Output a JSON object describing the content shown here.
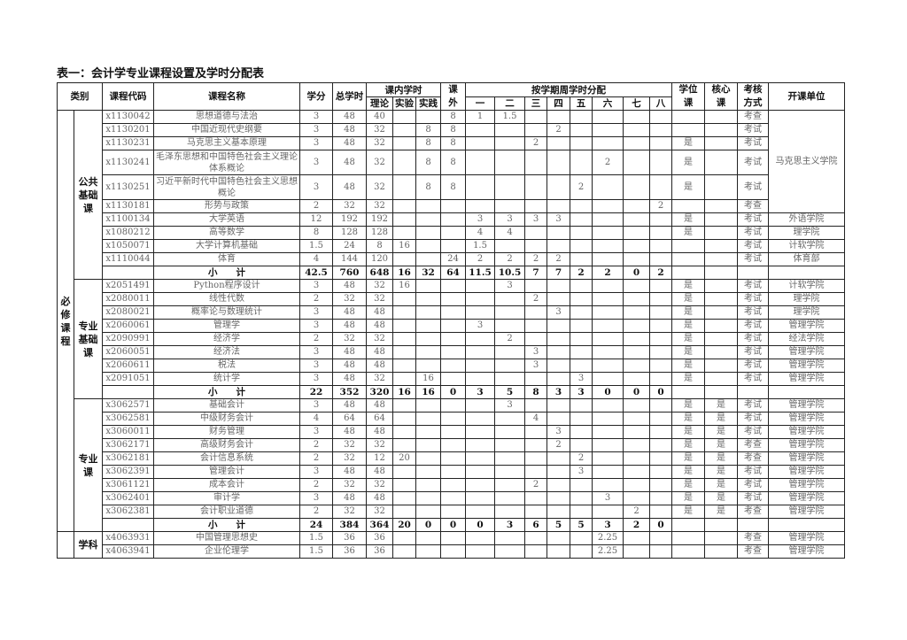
{
  "title": "表一：会计学专业课程设置及学时分配表",
  "header": {
    "category": "类别",
    "code": "课程代码",
    "name": "课程名称",
    "credit": "学分",
    "total_hours": "总学时",
    "in_class": "课内学时",
    "theory": "理论",
    "lab": "实验",
    "practice": "实践",
    "extra": "课外",
    "semester_dist": "按学期周学时分配",
    "semesters": [
      "一",
      "二",
      "三",
      "四",
      "五",
      "六",
      "七",
      "八"
    ],
    "degree": "学位课",
    "core": "核心课",
    "exam": "考核方式",
    "unit": "开课单位"
  },
  "outer_groups": [
    {
      "label": "必修课程",
      "groups": [
        0,
        1,
        2
      ]
    },
    {
      "label": "",
      "groups": [
        3
      ]
    }
  ],
  "groups": [
    {
      "label": "公共基础课",
      "merged_unit": {
        "rows": 6,
        "text": "马克思主义学院"
      },
      "rows": [
        {
          "code": "x1130042",
          "name": "思想道德与法治",
          "credit": "3",
          "total": "48",
          "theory": "40",
          "lab": "",
          "practice": "",
          "extra": "8",
          "sem": [
            "1",
            "1.5",
            "",
            "",
            "",
            "",
            "",
            ""
          ],
          "degree": "",
          "core": "",
          "exam": "考查",
          "unit": ""
        },
        {
          "code": "x1130201",
          "name": "中国近现代史纲要",
          "credit": "3",
          "total": "48",
          "theory": "32",
          "lab": "",
          "practice": "8",
          "extra": "8",
          "sem": [
            "",
            "",
            "",
            "2",
            "",
            "",
            "",
            ""
          ],
          "degree": "",
          "core": "",
          "exam": "考试",
          "unit": ""
        },
        {
          "code": "x1130231",
          "name": "马克思主义基本原理",
          "credit": "3",
          "total": "48",
          "theory": "32",
          "lab": "",
          "practice": "8",
          "extra": "8",
          "sem": [
            "",
            "",
            "2",
            "",
            "",
            "",
            "",
            ""
          ],
          "degree": "是",
          "core": "",
          "exam": "考试",
          "unit": ""
        },
        {
          "code": "x1130241",
          "name": "毛泽东思想和中国特色社会主义理论体系概论",
          "tall": true,
          "credit": "3",
          "total": "48",
          "theory": "32",
          "lab": "",
          "practice": "8",
          "extra": "8",
          "sem": [
            "",
            "",
            "",
            "",
            "",
            "2",
            "",
            ""
          ],
          "degree": "是",
          "core": "",
          "exam": "考试",
          "unit": ""
        },
        {
          "code": "x1130251",
          "name": "习近平新时代中国特色社会主义思想概论",
          "tall": true,
          "credit": "3",
          "total": "48",
          "theory": "32",
          "lab": "",
          "practice": "8",
          "extra": "8",
          "sem": [
            "",
            "",
            "",
            "",
            "2",
            "",
            "",
            ""
          ],
          "degree": "是",
          "core": "",
          "exam": "考试",
          "unit": ""
        },
        {
          "code": "x1130181",
          "name": "形势与政策",
          "credit": "2",
          "total": "32",
          "theory": "32",
          "lab": "",
          "practice": "",
          "extra": "",
          "sem": [
            "",
            "",
            "",
            "",
            "",
            "",
            "",
            "2"
          ],
          "degree": "",
          "core": "",
          "exam": "考查",
          "unit": ""
        },
        {
          "code": "x1100134",
          "name": "大学英语",
          "credit": "12",
          "total": "192",
          "theory": "192",
          "lab": "",
          "practice": "",
          "extra": "",
          "sem": [
            "3",
            "3",
            "3",
            "3",
            "",
            "",
            "",
            ""
          ],
          "degree": "是",
          "core": "",
          "exam": "考试",
          "unit": "外语学院"
        },
        {
          "code": "x1080212",
          "name": "高等数学",
          "credit": "8",
          "total": "128",
          "theory": "128",
          "lab": "",
          "practice": "",
          "extra": "",
          "sem": [
            "4",
            "4",
            "",
            "",
            "",
            "",
            "",
            ""
          ],
          "degree": "是",
          "core": "",
          "exam": "考试",
          "unit": "理学院"
        },
        {
          "code": "x1050071",
          "name": "大学计算机基础",
          "credit": "1.5",
          "total": "24",
          "theory": "8",
          "lab": "16",
          "practice": "",
          "extra": "",
          "sem": [
            "1.5",
            "",
            "",
            "",
            "",
            "",
            "",
            ""
          ],
          "degree": "",
          "core": "",
          "exam": "考试",
          "unit": "计软学院"
        },
        {
          "code": "x1110044",
          "name": "体育",
          "credit": "4",
          "total": "144",
          "theory": "120",
          "lab": "",
          "practice": "",
          "extra": "24",
          "sem": [
            "2",
            "2",
            "2",
            "2",
            "",
            "",
            "",
            ""
          ],
          "degree": "",
          "core": "",
          "exam": "考试",
          "unit": "体育部"
        }
      ],
      "subtotal": {
        "label": "小　　计",
        "credit": "42.5",
        "total": "760",
        "theory": "648",
        "lab": "16",
        "practice": "32",
        "extra": "64",
        "sem": [
          "11.5",
          "10.5",
          "7",
          "7",
          "2",
          "2",
          "0",
          "2"
        ]
      }
    },
    {
      "label": "专业基础课",
      "rows": [
        {
          "code": "x2051491",
          "name": "Python程序设计",
          "credit": "3",
          "total": "48",
          "theory": "32",
          "lab": "16",
          "practice": "",
          "extra": "",
          "sem": [
            "",
            "3",
            "",
            "",
            "",
            "",
            "",
            ""
          ],
          "degree": "是",
          "core": "",
          "exam": "考试",
          "unit": "计软学院"
        },
        {
          "code": "x2080011",
          "name": "线性代数",
          "credit": "2",
          "total": "32",
          "theory": "32",
          "lab": "",
          "practice": "",
          "extra": "",
          "sem": [
            "",
            "",
            "2",
            "",
            "",
            "",
            "",
            ""
          ],
          "degree": "是",
          "core": "",
          "exam": "考试",
          "unit": "理学院"
        },
        {
          "code": "x2080021",
          "name": "概率论与数理统计",
          "credit": "3",
          "total": "48",
          "theory": "48",
          "lab": "",
          "practice": "",
          "extra": "",
          "sem": [
            "",
            "",
            "",
            "3",
            "",
            "",
            "",
            ""
          ],
          "degree": "是",
          "core": "",
          "exam": "考试",
          "unit": "理学院"
        },
        {
          "code": "x2060061",
          "name": "管理学",
          "credit": "3",
          "total": "48",
          "theory": "48",
          "lab": "",
          "practice": "",
          "extra": "",
          "sem": [
            "3",
            "",
            "",
            "",
            "",
            "",
            "",
            ""
          ],
          "degree": "是",
          "core": "",
          "exam": "考试",
          "unit": "管理学院"
        },
        {
          "code": "x2090991",
          "name": "经济学",
          "credit": "2",
          "total": "32",
          "theory": "32",
          "lab": "",
          "practice": "",
          "extra": "",
          "sem": [
            "",
            "2",
            "",
            "",
            "",
            "",
            "",
            ""
          ],
          "degree": "是",
          "core": "",
          "exam": "考试",
          "unit": "经法学院"
        },
        {
          "code": "x2060051",
          "name": "经济法",
          "credit": "3",
          "total": "48",
          "theory": "48",
          "lab": "",
          "practice": "",
          "extra": "",
          "sem": [
            "",
            "",
            "3",
            "",
            "",
            "",
            "",
            ""
          ],
          "degree": "是",
          "core": "",
          "exam": "考试",
          "unit": "管理学院"
        },
        {
          "code": "x2060611",
          "name": "税法",
          "credit": "3",
          "total": "48",
          "theory": "48",
          "lab": "",
          "practice": "",
          "extra": "",
          "sem": [
            "",
            "",
            "3",
            "",
            "",
            "",
            "",
            ""
          ],
          "degree": "是",
          "core": "",
          "exam": "考试",
          "unit": "管理学院"
        },
        {
          "code": "x2091051",
          "name": "统计学",
          "credit": "3",
          "total": "48",
          "theory": "32",
          "lab": "",
          "practice": "16",
          "extra": "",
          "sem": [
            "",
            "",
            "",
            "",
            "3",
            "",
            "",
            ""
          ],
          "degree": "是",
          "core": "",
          "exam": "考试",
          "unit": "管理学院"
        }
      ],
      "subtotal": {
        "label": "小　　计",
        "credit": "22",
        "total": "352",
        "theory": "320",
        "lab": "16",
        "practice": "16",
        "extra": "0",
        "sem": [
          "3",
          "5",
          "8",
          "3",
          "3",
          "0",
          "0",
          "0"
        ]
      }
    },
    {
      "label": "专业课",
      "rows": [
        {
          "code": "x3062571",
          "name": "基础会计",
          "credit": "3",
          "total": "48",
          "theory": "48",
          "lab": "",
          "practice": "",
          "extra": "",
          "sem": [
            "",
            "3",
            "",
            "",
            "",
            "",
            "",
            ""
          ],
          "degree": "是",
          "core": "是",
          "exam": "考试",
          "unit": "管理学院"
        },
        {
          "code": "x3062581",
          "name": "中级财务会计",
          "credit": "4",
          "total": "64",
          "theory": "64",
          "lab": "",
          "practice": "",
          "extra": "",
          "sem": [
            "",
            "",
            "4",
            "",
            "",
            "",
            "",
            ""
          ],
          "degree": "是",
          "core": "是",
          "exam": "考试",
          "unit": "管理学院"
        },
        {
          "code": "x3060011",
          "name": "财务管理",
          "credit": "3",
          "total": "48",
          "theory": "48",
          "lab": "",
          "practice": "",
          "extra": "",
          "sem": [
            "",
            "",
            "",
            "3",
            "",
            "",
            "",
            ""
          ],
          "degree": "是",
          "core": "是",
          "exam": "考试",
          "unit": "管理学院"
        },
        {
          "code": "x3062171",
          "name": "高级财务会计",
          "credit": "2",
          "total": "32",
          "theory": "32",
          "lab": "",
          "practice": "",
          "extra": "",
          "sem": [
            "",
            "",
            "",
            "2",
            "",
            "",
            "",
            ""
          ],
          "degree": "是",
          "core": "是",
          "exam": "考查",
          "unit": "管理学院"
        },
        {
          "code": "x3062181",
          "name": "会计信息系统",
          "credit": "2",
          "total": "32",
          "theory": "12",
          "lab": "20",
          "practice": "",
          "extra": "",
          "sem": [
            "",
            "",
            "",
            "",
            "2",
            "",
            "",
            ""
          ],
          "degree": "是",
          "core": "是",
          "exam": "考查",
          "unit": "管理学院"
        },
        {
          "code": "x3062391",
          "name": "管理会计",
          "credit": "3",
          "total": "48",
          "theory": "48",
          "lab": "",
          "practice": "",
          "extra": "",
          "sem": [
            "",
            "",
            "",
            "",
            "3",
            "",
            "",
            ""
          ],
          "degree": "是",
          "core": "是",
          "exam": "考试",
          "unit": "管理学院"
        },
        {
          "code": "x3061121",
          "name": "成本会计",
          "credit": "2",
          "total": "32",
          "theory": "32",
          "lab": "",
          "practice": "",
          "extra": "",
          "sem": [
            "",
            "",
            "2",
            "",
            "",
            "",
            "",
            ""
          ],
          "degree": "是",
          "core": "是",
          "exam": "考试",
          "unit": "管理学院"
        },
        {
          "code": "x3062401",
          "name": "审计学",
          "credit": "3",
          "total": "48",
          "theory": "48",
          "lab": "",
          "practice": "",
          "extra": "",
          "sem": [
            "",
            "",
            "",
            "",
            "",
            "3",
            "",
            ""
          ],
          "degree": "是",
          "core": "是",
          "exam": "考试",
          "unit": "管理学院"
        },
        {
          "code": "x3062381",
          "name": "会计职业道德",
          "credit": "2",
          "total": "32",
          "theory": "32",
          "lab": "",
          "practice": "",
          "extra": "",
          "sem": [
            "",
            "",
            "",
            "",
            "",
            "",
            "2",
            ""
          ],
          "degree": "是",
          "core": "是",
          "exam": "考查",
          "unit": "管理学院"
        }
      ],
      "subtotal": {
        "label": "小　　计",
        "credit": "24",
        "total": "384",
        "theory": "364",
        "lab": "20",
        "practice": "0",
        "extra": "0",
        "sem": [
          "0",
          "3",
          "6",
          "5",
          "5",
          "3",
          "2",
          "0"
        ]
      }
    },
    {
      "label": "学科",
      "rows": [
        {
          "code": "x4063931",
          "name": "中国管理思想史",
          "credit": "1.5",
          "total": "36",
          "theory": "36",
          "lab": "",
          "practice": "",
          "extra": "",
          "sem": [
            "",
            "",
            "",
            "",
            "",
            "2.25",
            "",
            ""
          ],
          "degree": "",
          "core": "",
          "exam": "考查",
          "unit": "管理学院"
        },
        {
          "code": "x4063941",
          "name": "企业伦理学",
          "credit": "1.5",
          "total": "36",
          "theory": "36",
          "lab": "",
          "practice": "",
          "extra": "",
          "sem": [
            "",
            "",
            "",
            "",
            "",
            "2.25",
            "",
            ""
          ],
          "degree": "",
          "core": "",
          "exam": "考查",
          "unit": "管理学院"
        }
      ]
    }
  ]
}
